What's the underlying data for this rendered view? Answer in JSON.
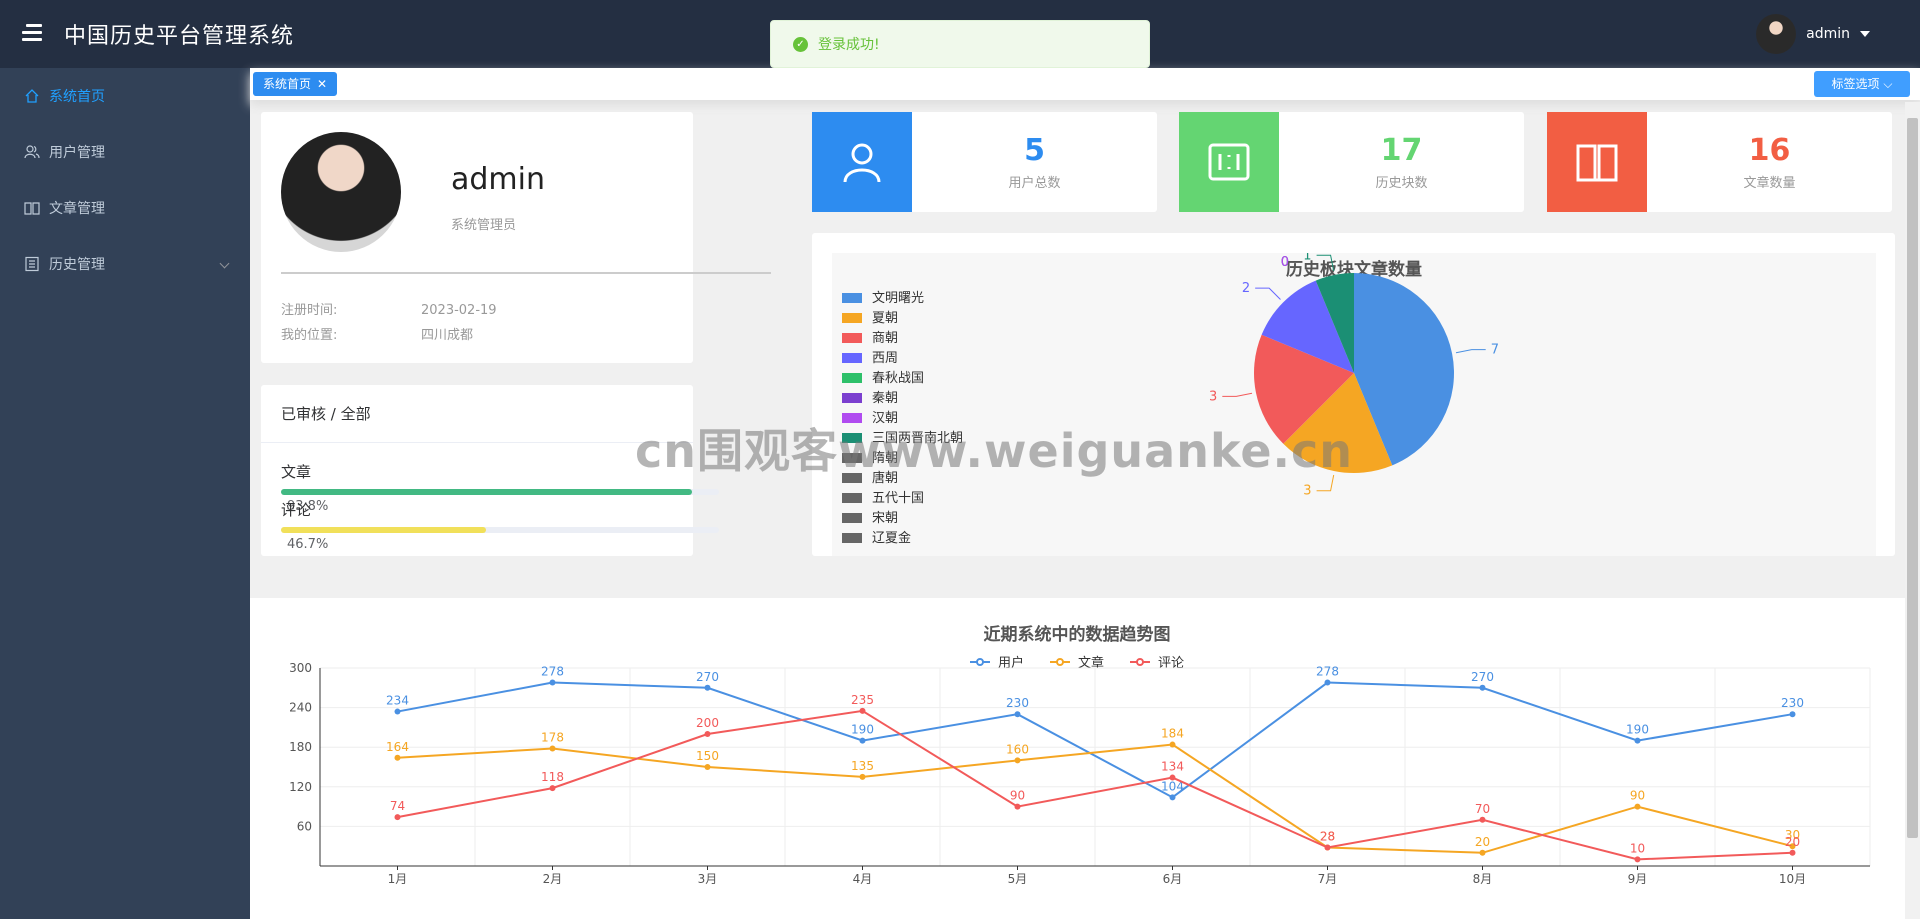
{
  "header": {
    "title": "中国历史平台管理系统",
    "user": "admin",
    "avatar_icon": "user-avatar-icon"
  },
  "toast": {
    "message": "登录成功!"
  },
  "sidebar": {
    "items": [
      {
        "label": "系统首页",
        "icon": "home-icon",
        "active": true
      },
      {
        "label": "用户管理",
        "icon": "users-icon"
      },
      {
        "label": "文章管理",
        "icon": "book-icon"
      },
      {
        "label": "历史管理",
        "icon": "list-icon",
        "expandable": true
      }
    ]
  },
  "tags": {
    "items": [
      {
        "label": "系统首页"
      }
    ],
    "options_label": "标签选项"
  },
  "profile": {
    "name": "admin",
    "role": "系统管理员",
    "reg_label": "注册时间:",
    "reg_value": "2023-02-19",
    "loc_label": "我的位置:",
    "loc_value": "四川成都"
  },
  "progress": {
    "title": "已审核 / 全部",
    "items": [
      {
        "label": "文章",
        "percent": 93.8,
        "text": "93.8%",
        "color": "#42b983"
      },
      {
        "label": "评论",
        "percent": 46.7,
        "text": "46.7%",
        "color": "#f1e05a"
      }
    ]
  },
  "stats": [
    {
      "value": "5",
      "label": "用户总数",
      "color": "#2d8cf0",
      "icon": "user-icon"
    },
    {
      "value": "17",
      "label": "历史块数",
      "color": "#64d572",
      "icon": "block-icon"
    },
    {
      "value": "16",
      "label": "文章数量",
      "color": "#f25e43",
      "icon": "open-book-icon"
    }
  ],
  "watermark": "cn围观客www.weiguanke.cn",
  "chart_data": [
    {
      "type": "pie",
      "title": "历史板块文章数量",
      "legend_position": "left",
      "categories": [
        "文明曙光",
        "夏朝",
        "商朝",
        "西周",
        "春秋战国",
        "秦朝",
        "汉朝",
        "三国两晋南北朝",
        "隋朝",
        "唐朝",
        "五代十国",
        "宋朝",
        "辽夏金"
      ],
      "values": [
        7,
        3,
        3,
        2,
        0,
        0,
        0,
        1,
        0,
        0,
        0,
        0,
        0
      ],
      "colors": [
        "#4a90e2",
        "#f5a623",
        "#f25a5a",
        "#6666ff",
        "#2ec06a",
        "#7b3fcf",
        "#b04cf0",
        "#1b8f74",
        "#666666",
        "#666666",
        "#666666",
        "#666666",
        "#666666"
      ]
    },
    {
      "type": "line",
      "title": "近期系统中的数据趋势图",
      "legend_position": "top",
      "x": [
        "1月",
        "2月",
        "3月",
        "4月",
        "5月",
        "6月",
        "7月",
        "8月",
        "9月",
        "10月"
      ],
      "y_ticks": [
        60,
        120,
        180,
        240,
        300
      ],
      "ylim": [
        0,
        300
      ],
      "grid": true,
      "series": [
        {
          "name": "用户",
          "color": "#4a90e2",
          "values": [
            234,
            278,
            270,
            190,
            230,
            104,
            278,
            270,
            190,
            230
          ]
        },
        {
          "name": "文章",
          "color": "#f5a623",
          "values": [
            164,
            178,
            150,
            135,
            160,
            184,
            28,
            20,
            90,
            30
          ]
        },
        {
          "name": "评论",
          "color": "#f25a5a",
          "values": [
            74,
            118,
            200,
            235,
            90,
            134,
            28,
            70,
            10,
            20
          ]
        }
      ]
    }
  ]
}
